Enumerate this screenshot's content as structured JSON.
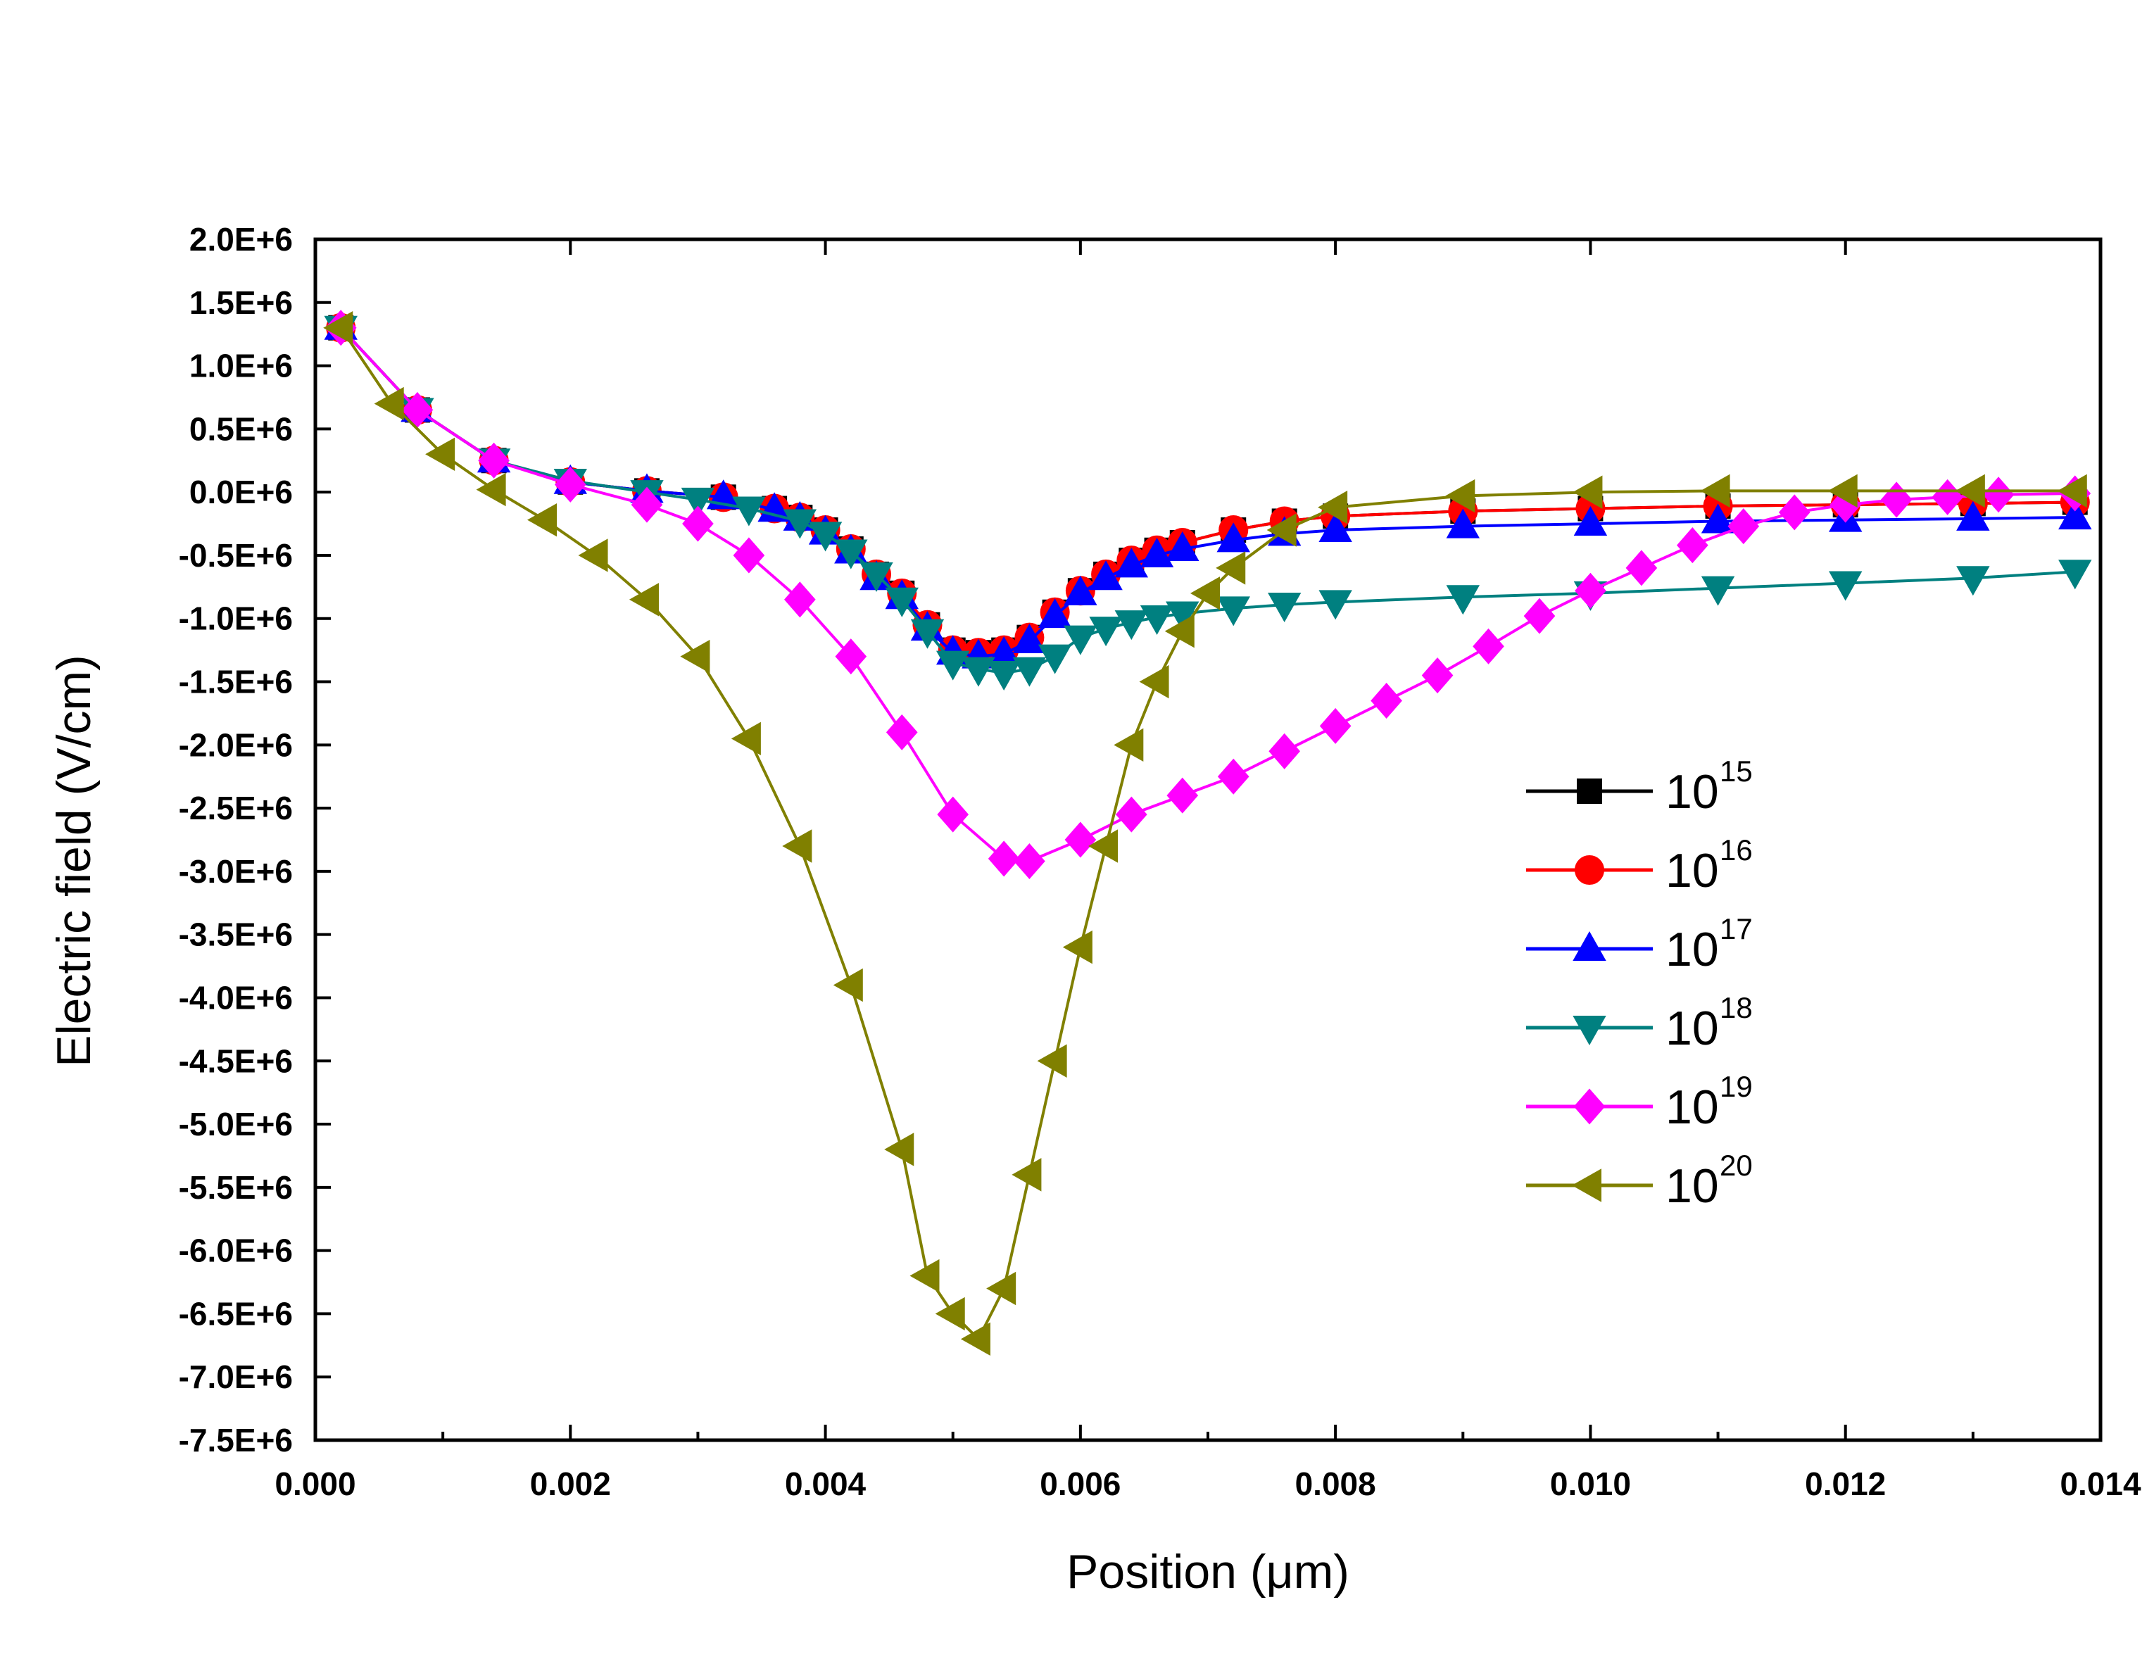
{
  "chart_data": {
    "type": "line",
    "title": "",
    "xlabel": "Position  (μm)",
    "ylabel": "Electric field  (V/cm)",
    "xlim": [
      0,
      0.014
    ],
    "ylim": [
      -7500000,
      2000000
    ],
    "x_ticks": [
      0.0,
      0.002,
      0.004,
      0.006,
      0.008,
      0.01,
      0.012,
      0.014
    ],
    "x_tick_labels": [
      "0.000",
      "0.002",
      "0.004",
      "0.006",
      "0.008",
      "0.010",
      "0.012",
      "0.014"
    ],
    "y_ticks": [
      2000000,
      1500000,
      1000000,
      500000,
      0,
      -500000,
      -1000000,
      -1500000,
      -2000000,
      -2500000,
      -3000000,
      -3500000,
      -4000000,
      -4500000,
      -5000000,
      -5500000,
      -6000000,
      -6500000,
      -7000000,
      -7500000
    ],
    "y_tick_labels": [
      "2.0E+6",
      "1.5E+6",
      "1.0E+6",
      "0.5E+6",
      "0.0E+6",
      "-0.5E+6",
      "-1.0E+6",
      "-1.5E+6",
      "-2.0E+6",
      "-2.5E+6",
      "-3.0E+6",
      "-3.5E+6",
      "-4.0E+6",
      "-4.5E+6",
      "-5.0E+6",
      "-5.5E+6",
      "-6.0E+6",
      "-6.5E+6",
      "-7.0E+6",
      "-7.5E+6"
    ],
    "legend_position": "right-center",
    "series": [
      {
        "name": "10^15",
        "legend_base": "10",
        "legend_exp": "15",
        "color": "#000000",
        "marker": "square",
        "x": [
          0.0002,
          0.0008,
          0.0014,
          0.002,
          0.0026,
          0.0032,
          0.0036,
          0.0038,
          0.004,
          0.0042,
          0.0044,
          0.0046,
          0.0048,
          0.005,
          0.0052,
          0.0054,
          0.0056,
          0.0058,
          0.006,
          0.0062,
          0.0064,
          0.0066,
          0.0068,
          0.0072,
          0.0076,
          0.008,
          0.009,
          0.01,
          0.011,
          0.012,
          0.013,
          0.0138
        ],
        "y": [
          1300000,
          650000,
          250000,
          80000,
          10000,
          -40000,
          -130000,
          -200000,
          -300000,
          -450000,
          -650000,
          -800000,
          -1050000,
          -1250000,
          -1270000,
          -1250000,
          -1150000,
          -950000,
          -780000,
          -650000,
          -540000,
          -460000,
          -400000,
          -300000,
          -230000,
          -190000,
          -150000,
          -130000,
          -110000,
          -100000,
          -90000,
          -80000
        ]
      },
      {
        "name": "10^16",
        "legend_base": "10",
        "legend_exp": "16",
        "color": "#ff0000",
        "marker": "circle",
        "x": [
          0.0002,
          0.0008,
          0.0014,
          0.002,
          0.0026,
          0.0032,
          0.0036,
          0.0038,
          0.004,
          0.0042,
          0.0044,
          0.0046,
          0.0048,
          0.005,
          0.0052,
          0.0054,
          0.0056,
          0.0058,
          0.006,
          0.0062,
          0.0064,
          0.0066,
          0.0068,
          0.0072,
          0.0076,
          0.008,
          0.009,
          0.01,
          0.011,
          0.012,
          0.013,
          0.0138
        ],
        "y": [
          1300000,
          650000,
          250000,
          80000,
          10000,
          -40000,
          -130000,
          -200000,
          -300000,
          -450000,
          -650000,
          -800000,
          -1050000,
          -1250000,
          -1270000,
          -1250000,
          -1150000,
          -950000,
          -780000,
          -650000,
          -540000,
          -460000,
          -400000,
          -300000,
          -230000,
          -190000,
          -150000,
          -130000,
          -110000,
          -100000,
          -90000,
          -80000
        ]
      },
      {
        "name": "10^17",
        "legend_base": "10",
        "legend_exp": "17",
        "color": "#0000ff",
        "marker": "triangle-up",
        "x": [
          0.0002,
          0.0008,
          0.0014,
          0.002,
          0.0026,
          0.0032,
          0.0036,
          0.0038,
          0.004,
          0.0042,
          0.0044,
          0.0046,
          0.0048,
          0.005,
          0.0052,
          0.0054,
          0.0056,
          0.0058,
          0.006,
          0.0062,
          0.0064,
          0.0066,
          0.0068,
          0.0072,
          0.0076,
          0.008,
          0.009,
          0.01,
          0.011,
          0.012,
          0.013,
          0.0138
        ],
        "y": [
          1300000,
          650000,
          250000,
          80000,
          10000,
          -40000,
          -140000,
          -210000,
          -320000,
          -470000,
          -680000,
          -830000,
          -1080000,
          -1270000,
          -1300000,
          -1280000,
          -1180000,
          -980000,
          -800000,
          -680000,
          -580000,
          -500000,
          -450000,
          -380000,
          -330000,
          -300000,
          -270000,
          -250000,
          -230000,
          -220000,
          -210000,
          -200000
        ]
      },
      {
        "name": "10^18",
        "legend_base": "10",
        "legend_exp": "18",
        "color": "#008080",
        "marker": "triangle-down",
        "x": [
          0.0002,
          0.0008,
          0.0014,
          0.002,
          0.0026,
          0.003,
          0.0034,
          0.0038,
          0.004,
          0.0042,
          0.0044,
          0.0046,
          0.0048,
          0.005,
          0.0052,
          0.0054,
          0.0056,
          0.0058,
          0.006,
          0.0062,
          0.0064,
          0.0066,
          0.0068,
          0.0072,
          0.0076,
          0.008,
          0.009,
          0.01,
          0.011,
          0.012,
          0.013,
          0.0138
        ],
        "y": [
          1300000,
          650000,
          250000,
          90000,
          0,
          -60000,
          -130000,
          -230000,
          -330000,
          -470000,
          -650000,
          -850000,
          -1100000,
          -1350000,
          -1400000,
          -1430000,
          -1400000,
          -1300000,
          -1150000,
          -1080000,
          -1030000,
          -990000,
          -960000,
          -920000,
          -890000,
          -870000,
          -830000,
          -800000,
          -760000,
          -720000,
          -680000,
          -630000
        ]
      },
      {
        "name": "10^19",
        "legend_base": "10",
        "legend_exp": "19",
        "color": "#ff00ff",
        "marker": "diamond",
        "x": [
          0.0002,
          0.0008,
          0.0014,
          0.002,
          0.0026,
          0.003,
          0.0034,
          0.0038,
          0.0042,
          0.0046,
          0.005,
          0.0054,
          0.0056,
          0.006,
          0.0064,
          0.0068,
          0.0072,
          0.0076,
          0.008,
          0.0084,
          0.0088,
          0.0092,
          0.0096,
          0.01,
          0.0104,
          0.0108,
          0.0112,
          0.0116,
          0.012,
          0.0124,
          0.0128,
          0.0132,
          0.0138
        ],
        "y": [
          1300000,
          650000,
          250000,
          60000,
          -100000,
          -250000,
          -500000,
          -850000,
          -1300000,
          -1900000,
          -2550000,
          -2900000,
          -2920000,
          -2750000,
          -2550000,
          -2400000,
          -2250000,
          -2050000,
          -1850000,
          -1650000,
          -1450000,
          -1220000,
          -980000,
          -780000,
          -600000,
          -420000,
          -270000,
          -160000,
          -100000,
          -60000,
          -40000,
          -20000,
          -10000
        ]
      },
      {
        "name": "10^20",
        "legend_base": "10",
        "legend_exp": "20",
        "color": "#808000",
        "marker": "triangle-left",
        "x": [
          0.0002,
          0.0006,
          0.001,
          0.0014,
          0.0018,
          0.0022,
          0.0026,
          0.003,
          0.0034,
          0.0038,
          0.0042,
          0.0046,
          0.0048,
          0.005,
          0.0052,
          0.0054,
          0.0056,
          0.0058,
          0.006,
          0.0062,
          0.0064,
          0.0066,
          0.0068,
          0.007,
          0.0072,
          0.0076,
          0.008,
          0.009,
          0.01,
          0.011,
          0.012,
          0.013,
          0.0138
        ],
        "y": [
          1300000,
          700000,
          300000,
          20000,
          -220000,
          -500000,
          -850000,
          -1300000,
          -1950000,
          -2800000,
          -3900000,
          -5200000,
          -6200000,
          -6500000,
          -6700000,
          -6300000,
          -5400000,
          -4500000,
          -3600000,
          -2800000,
          -2000000,
          -1500000,
          -1100000,
          -800000,
          -600000,
          -300000,
          -120000,
          -30000,
          0,
          10000,
          10000,
          10000,
          10000
        ]
      }
    ]
  }
}
